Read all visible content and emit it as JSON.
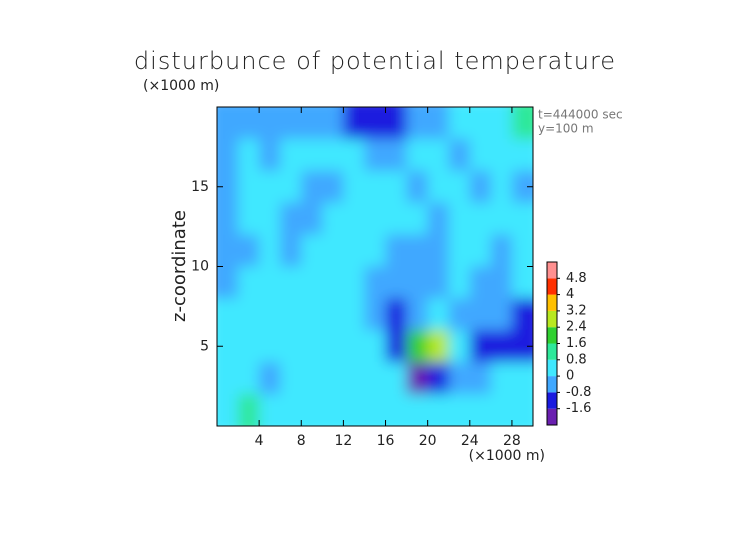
{
  "chart_data": {
    "type": "heatmap",
    "title": "disturbunce of potential temperature",
    "y_unit": "(×1000 m)",
    "x_unit": "(×1000 m)",
    "ylabel": "z-coordinate",
    "annotations": [
      "t=444000 sec",
      "y=100 m"
    ],
    "xlim": [
      0,
      30
    ],
    "ylim": [
      0,
      20
    ],
    "xticks": [
      4,
      8,
      12,
      16,
      20,
      24,
      28
    ],
    "yticks": [
      5,
      10,
      15
    ],
    "x": [
      1,
      3,
      5,
      7,
      9,
      11,
      13,
      15,
      17,
      19,
      21,
      23,
      25,
      27,
      29
    ],
    "y": [
      19,
      17,
      15,
      13,
      11,
      9,
      7,
      5,
      3,
      1
    ],
    "z": [
      [
        -0.3,
        -0.3,
        -0.3,
        -0.3,
        -0.4,
        -0.5,
        -0.9,
        -1.0,
        -0.9,
        -0.6,
        -0.3,
        0.2,
        0.3,
        0.5,
        0.8
      ],
      [
        -0.2,
        0.1,
        -0.3,
        0.2,
        0.3,
        0.3,
        0.2,
        -0.3,
        -0.4,
        0.1,
        0.3,
        -0.3,
        0.3,
        0.4,
        0.3
      ],
      [
        -0.3,
        0.2,
        0.3,
        0.3,
        -0.2,
        -0.3,
        0.2,
        0.3,
        0.2,
        -0.3,
        0.3,
        0.3,
        -0.3,
        0.3,
        -0.2
      ],
      [
        -0.5,
        0.2,
        0.3,
        -0.2,
        -0.3,
        0.2,
        0.3,
        0.3,
        0.2,
        0.2,
        -0.2,
        0.3,
        0.3,
        0.3,
        0.2
      ],
      [
        -0.6,
        -0.3,
        0.3,
        -0.2,
        0.3,
        0.3,
        0.3,
        0.2,
        -0.4,
        -0.2,
        -0.3,
        0.3,
        0.3,
        -0.2,
        0.2
      ],
      [
        -0.3,
        0.2,
        0.3,
        0.3,
        0.3,
        0.2,
        0.3,
        -0.4,
        -0.6,
        -0.2,
        -0.3,
        0.2,
        -0.2,
        -0.3,
        0.3
      ],
      [
        0.2,
        0.3,
        0.3,
        0.2,
        0.3,
        0.3,
        0.2,
        -0.3,
        -0.9,
        -0.4,
        0.2,
        -0.3,
        -0.3,
        -0.6,
        -0.9
      ],
      [
        0.4,
        0.3,
        0.2,
        0.3,
        0.2,
        0.3,
        0.2,
        0.1,
        -1.5,
        1.6,
        2.6,
        0.3,
        -1.0,
        -1.3,
        -1.0
      ],
      [
        0.6,
        0.3,
        -0.2,
        0.4,
        0.3,
        0.6,
        0.3,
        0.2,
        0.1,
        -1.8,
        -1.2,
        -0.4,
        -0.3,
        0.3,
        0.2
      ],
      [
        0.3,
        0.9,
        0.3,
        0.2,
        0.3,
        0.6,
        0.2,
        0.3,
        0.3,
        0.6,
        0.3,
        0.2,
        0.3,
        0.3,
        0.4
      ]
    ],
    "colorbar": {
      "lim": [
        -2.4,
        5.6
      ],
      "ticks": [
        4.8,
        4,
        3.2,
        2.4,
        1.6,
        0.8,
        0,
        -0.8,
        -1.6
      ],
      "colors": [
        "#6a1fb0",
        "#1a1adf",
        "#40a8ff",
        "#40e8ff",
        "#2ee89a",
        "#30d030",
        "#b8e820",
        "#ffc000",
        "#ff3000",
        "#ff9090"
      ]
    }
  }
}
